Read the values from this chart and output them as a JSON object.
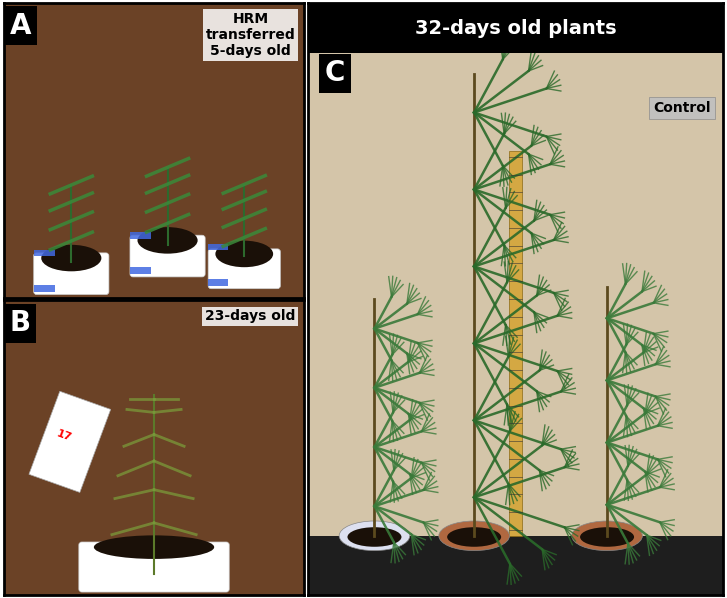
{
  "figure_width": 7.27,
  "figure_height": 5.98,
  "background_color": "#ffffff",
  "panels": {
    "A": {
      "label": "A",
      "label_bg": "#000000",
      "label_color": "#ffffff",
      "label_fontsize": 20,
      "label_fontweight": "bold",
      "annotation": "HRM\ntransferred\n5-days old",
      "annotation_fontsize": 10,
      "annotation_fontweight": "bold",
      "annotation_color": "#000000",
      "annotation_bg": "#ffffff"
    },
    "B": {
      "label": "B",
      "label_bg": "#000000",
      "label_color": "#ffffff",
      "label_fontsize": 20,
      "label_fontweight": "bold",
      "annotation": "23-days old",
      "annotation_fontsize": 10,
      "annotation_fontweight": "bold",
      "annotation_color": "#000000",
      "annotation_bg": "#ffffff"
    },
    "C": {
      "label": "C",
      "label_bg": "#000000",
      "label_color": "#ffffff",
      "label_fontsize": 20,
      "label_fontweight": "bold",
      "title": "32-days old plants",
      "title_fontsize": 14,
      "title_fontweight": "bold",
      "title_bg": "#000000",
      "title_color": "#ffffff",
      "annotation": "Control",
      "annotation_fontsize": 10,
      "annotation_fontweight": "bold",
      "annotation_color": "#000000",
      "annotation_bg": "#c0c0c0"
    }
  },
  "left_panel_color": "#5c3d1e",
  "right_panel_color": "#d4c5a9",
  "border_color": "#000000",
  "border_width": 2
}
